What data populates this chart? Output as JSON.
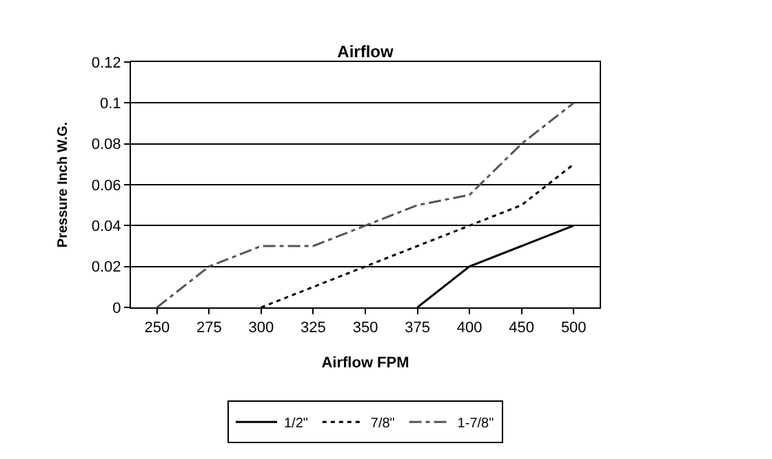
{
  "chart_data": {
    "type": "line",
    "title": "Airflow",
    "xlabel": "Airflow FPM",
    "ylabel": "Pressure Inch W.G.",
    "categories": [
      "250",
      "275",
      "300",
      "325",
      "350",
      "375",
      "400",
      "450",
      "500"
    ],
    "series": [
      {
        "name": "1/2\"",
        "color": "#000000",
        "line_style": "solid",
        "values": [
          null,
          null,
          null,
          null,
          null,
          0,
          0.02,
          0.03,
          0.04
        ]
      },
      {
        "name": "7/8\"",
        "color": "#000000",
        "line_style": "dotted",
        "values": [
          null,
          null,
          0,
          0.01,
          0.02,
          0.03,
          0.04,
          0.05,
          0.07
        ]
      },
      {
        "name": "1-7/8\"",
        "color": "#555555",
        "line_style": "dashed",
        "values": [
          0,
          0.02,
          0.03,
          0.03,
          0.04,
          0.05,
          0.055,
          0.08,
          0.1
        ]
      }
    ],
    "ylim": [
      0,
      0.12
    ],
    "yticks": [
      0,
      0.02,
      0.04,
      0.06,
      0.08,
      0.1,
      0.12
    ],
    "grid": "y",
    "legend": "bottom",
    "marker": "none"
  }
}
